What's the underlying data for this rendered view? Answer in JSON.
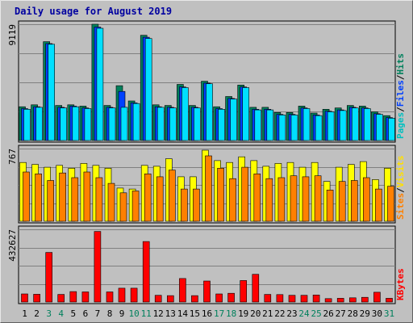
{
  "chart_data": {
    "type": "bar",
    "title": "Daily usage for August 2019",
    "categories": [
      "1",
      "2",
      "3",
      "4",
      "5",
      "6",
      "7",
      "8",
      "9",
      "10",
      "11",
      "12",
      "13",
      "14",
      "15",
      "16",
      "17",
      "18",
      "19",
      "20",
      "21",
      "22",
      "23",
      "24",
      "25",
      "26",
      "27",
      "28",
      "29",
      "30",
      "31"
    ],
    "weekend_days": [
      "3",
      "4",
      "10",
      "11",
      "17",
      "18",
      "24",
      "25",
      "31"
    ],
    "panels": [
      {
        "id": "hits_files_pages",
        "max_label": "9119",
        "ylim": [
          0,
          9119
        ],
        "legend": [
          {
            "text": "Pages",
            "color": "#00c0c0"
          },
          {
            "text": "/",
            "color": "#000000"
          },
          {
            "text": "Files",
            "color": "#0040ff"
          },
          {
            "text": "/",
            "color": "#000000"
          },
          {
            "text": "Hits",
            "color": "#00805c"
          }
        ],
        "series": [
          {
            "name": "Hits",
            "color": "#00805c",
            "values": [
              2650,
              2800,
              7750,
              2750,
              2800,
              2700,
              9119,
              2750,
              4300,
              3100,
              8250,
              2800,
              2750,
              4400,
              2750,
              4650,
              2650,
              3450,
              4350,
              2600,
              2600,
              2200,
              2200,
              2700,
              2150,
              2450,
              2550,
              2750,
              2700,
              2250,
              1950
            ]
          },
          {
            "name": "Files",
            "color": "#0040ff",
            "values": [
              2500,
              2650,
              7600,
              2600,
              2700,
              2550,
              8900,
              2600,
              3850,
              2950,
              8100,
              2650,
              2600,
              4200,
              2600,
              4500,
              2500,
              3300,
              4200,
              2450,
              2450,
              2050,
              2050,
              2550,
              2000,
              2300,
              2400,
              2600,
              2550,
              2100,
              1800
            ]
          },
          {
            "name": "Pages",
            "color": "#00e0ff",
            "values": [
              2450,
              2600,
              7550,
              2550,
              2650,
              2500,
              8800,
              2550,
              2600,
              2900,
              8000,
              2600,
              2550,
              4150,
              2550,
              4450,
              2450,
              3250,
              4150,
              2400,
              2400,
              2000,
              2000,
              2500,
              1950,
              2250,
              2350,
              2550,
              2500,
              2050,
              1750
            ]
          }
        ]
      },
      {
        "id": "visits_sites",
        "max_label": "767",
        "ylim": [
          0,
          767
        ],
        "legend": [
          {
            "text": "Sites",
            "color": "#ff8000"
          },
          {
            "text": "/",
            "color": "#000000"
          },
          {
            "text": "Visits",
            "color": "#ffe000"
          }
        ],
        "series": [
          {
            "name": "Visits",
            "color": "#ffff00",
            "values": [
              620,
              600,
              570,
              590,
              560,
              610,
              590,
              560,
              350,
              340,
              590,
              580,
              660,
              470,
              470,
              750,
              640,
              620,
              680,
              640,
              580,
              610,
              620,
              570,
              620,
              420,
              570,
              600,
              630,
              440,
              560
            ]
          },
          {
            "name": "Sites",
            "color": "#ff8000",
            "values": [
              520,
              500,
              430,
              510,
              460,
              520,
              460,
              400,
              300,
              320,
              500,
              470,
              540,
              340,
              340,
              690,
              560,
              450,
              570,
              500,
              450,
              460,
              480,
              470,
              480,
              330,
              420,
              430,
              460,
              340,
              370
            ]
          }
        ]
      },
      {
        "id": "kbytes",
        "max_label": "432627",
        "ylim": [
          0,
          432627
        ],
        "legend": [
          {
            "text": "KBytes",
            "color": "#ff0000"
          }
        ],
        "series": [
          {
            "name": "KBytes",
            "color": "#ff0000",
            "values": [
              48000,
              46000,
              295000,
              45000,
              62000,
              60000,
              420000,
              60000,
              82000,
              82000,
              360000,
              40000,
              38000,
              140000,
              38000,
              125000,
              48000,
              52000,
              128000,
              165000,
              45000,
              44000,
              40000,
              40000,
              42000,
              20000,
              22000,
              25000,
              28000,
              58000,
              22000
            ]
          }
        ]
      }
    ]
  }
}
